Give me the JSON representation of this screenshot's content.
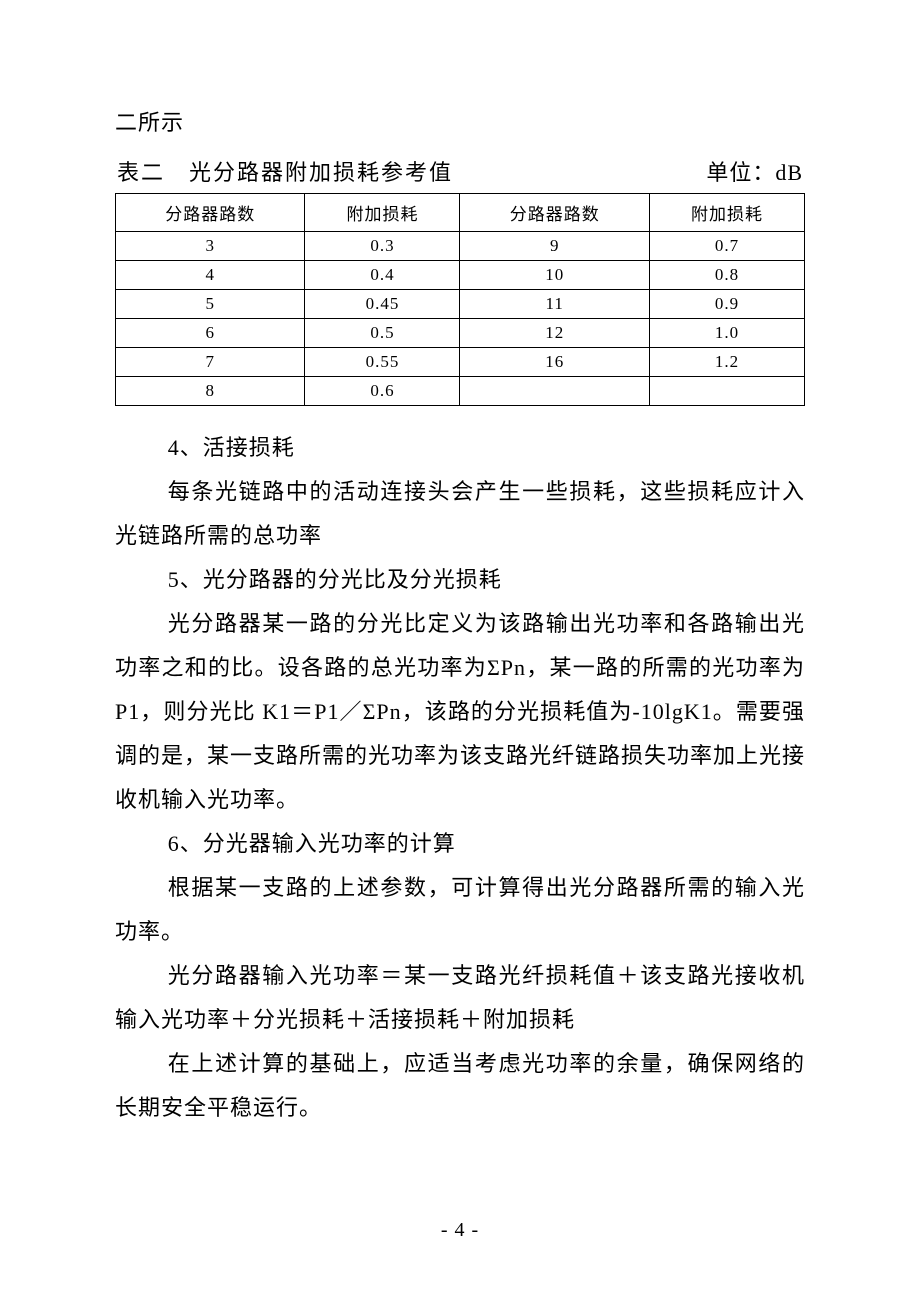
{
  "header": {
    "continuation_line": "二所示",
    "table_caption_left": "表二　光分路器附加损耗参考值",
    "table_caption_right": "单位：dB"
  },
  "table": {
    "columns": [
      "分路器路数",
      "附加损耗",
      "分路器路数",
      "附加损耗"
    ],
    "rows": [
      [
        "3",
        "0.3",
        "9",
        "0.7"
      ],
      [
        "4",
        "0.4",
        "10",
        "0.8"
      ],
      [
        "5",
        "0.45",
        "11",
        "0.9"
      ],
      [
        "6",
        "0.5",
        "12",
        "1.0"
      ],
      [
        "7",
        "0.55",
        "16",
        "1.2"
      ],
      [
        "8",
        "0.6",
        "",
        ""
      ]
    ],
    "border_color": "#000000",
    "header_fontsize": 17,
    "cell_fontsize": 17,
    "col_count": 4
  },
  "body": {
    "p1": "4、活接损耗",
    "p2": "每条光链路中的活动连接头会产生一些损耗，这些损耗应计入光链路所需的总功率",
    "p3": "5、光分路器的分光比及分光损耗",
    "p4": "光分路器某一路的分光比定义为该路输出光功率和各路输出光功率之和的比。设各路的总光功率为ΣPn，某一路的所需的光功率为 P1，则分光比 K1＝P1／ΣPn，该路的分光损耗值为-10lgK1。需要强调的是，某一支路所需的光功率为该支路光纤链路损失功率加上光接收机输入光功率。",
    "p5": "6、分光器输入光功率的计算",
    "p6": "根据某一支路的上述参数，可计算得出光分路器所需的输入光功率。",
    "p7": "光分路器输入光功率＝某一支路光纤损耗值＋该支路光接收机输入光功率＋分光损耗＋活接损耗＋附加损耗",
    "p8": "在上述计算的基础上，应适当考虑光功率的余量，确保网络的长期安全平稳运行。"
  },
  "page_number": "- 4 -",
  "colors": {
    "text": "#000000",
    "background": "#ffffff",
    "border": "#000000"
  }
}
